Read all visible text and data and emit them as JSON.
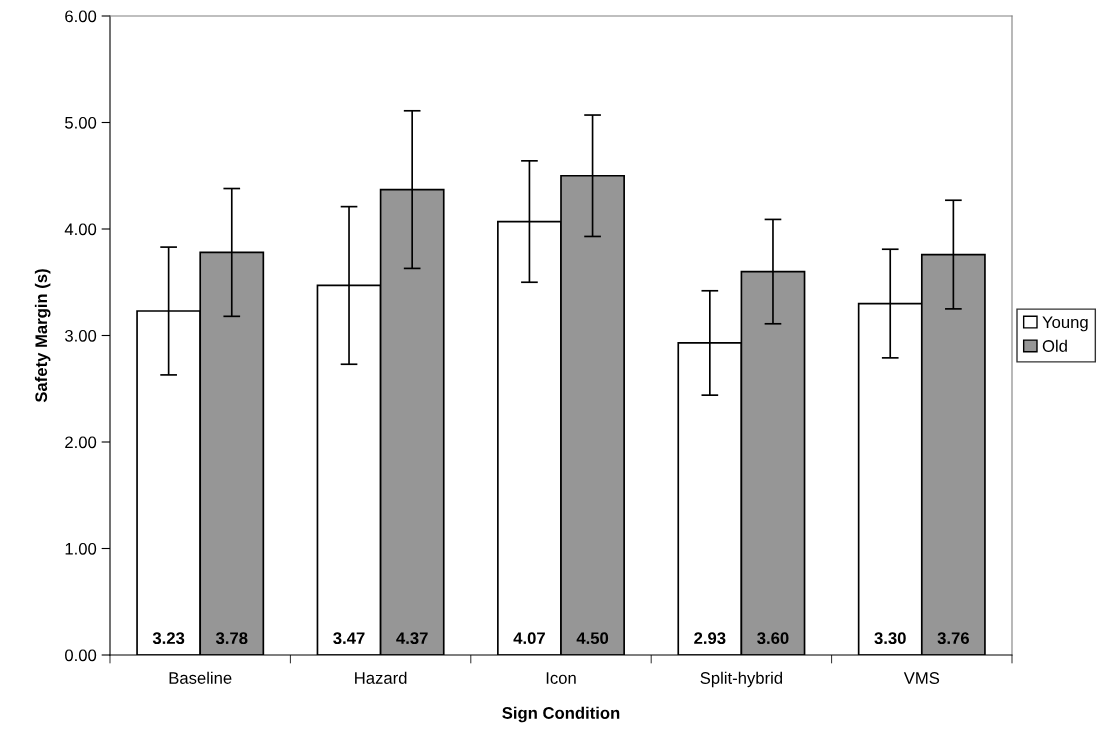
{
  "chart_data": {
    "type": "bar",
    "xlabel": "Sign Condition",
    "ylabel": "Safety Margin (s)",
    "categories": [
      "Baseline",
      "Hazard",
      "Icon",
      "Split-hybrid",
      "VMS"
    ],
    "series": [
      {
        "name": "Young",
        "color": "#ffffff",
        "values": [
          3.23,
          3.47,
          4.07,
          2.93,
          3.3
        ],
        "errors": [
          0.6,
          0.74,
          0.57,
          0.49,
          0.51
        ],
        "value_labels": [
          "3.23",
          "3.47",
          "4.07",
          "2.93",
          "3.30"
        ]
      },
      {
        "name": "Old",
        "color": "#969696",
        "values": [
          3.78,
          4.37,
          4.5,
          3.6,
          3.76
        ],
        "errors": [
          0.6,
          0.74,
          0.57,
          0.49,
          0.51
        ],
        "value_labels": [
          "3.78",
          "4.37",
          "4.50",
          "3.60",
          "3.76"
        ]
      }
    ],
    "ylim": [
      0,
      6
    ],
    "yticks": [
      {
        "value": 0,
        "label": "0.00"
      },
      {
        "value": 1,
        "label": "1.00"
      },
      {
        "value": 2,
        "label": "2.00"
      },
      {
        "value": 3,
        "label": "3.00"
      },
      {
        "value": 4,
        "label": "4.00"
      },
      {
        "value": 5,
        "label": "5.00"
      },
      {
        "value": 6,
        "label": "6.00"
      }
    ],
    "grid": false,
    "legend": "right"
  }
}
